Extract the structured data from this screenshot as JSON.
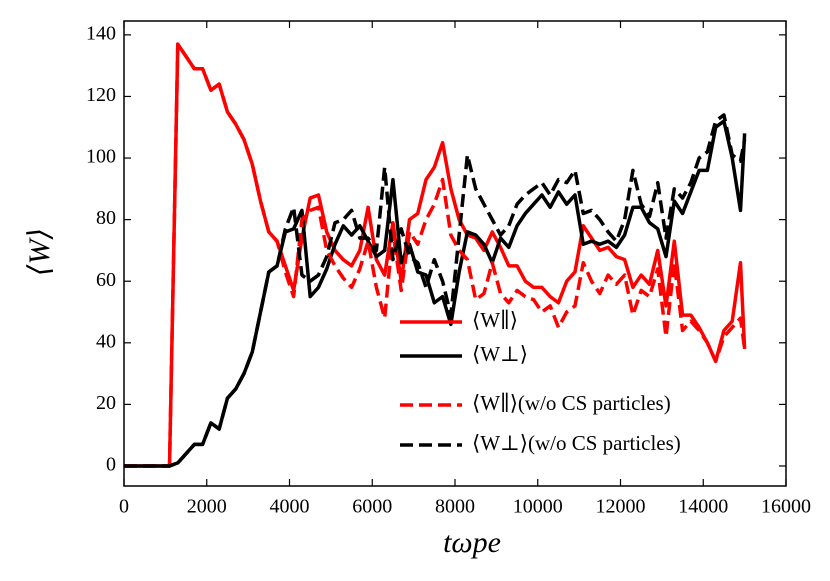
{
  "chart_data": {
    "type": "line",
    "xlabel": "tωpe",
    "ylabel": "⟨W⟩",
    "x": [
      0,
      1000,
      1100,
      1300,
      1500,
      1700,
      1900,
      2100,
      2300,
      2500,
      2700,
      2900,
      3100,
      3300,
      3500,
      3700,
      3900,
      4100,
      4300,
      4500,
      4700,
      4900,
      5100,
      5300,
      5500,
      5700,
      5900,
      6100,
      6300,
      6500,
      6700,
      6900,
      7100,
      7300,
      7500,
      7700,
      7900,
      8100,
      8300,
      8500,
      8700,
      8900,
      9100,
      9300,
      9500,
      9700,
      9900,
      10100,
      10300,
      10500,
      10700,
      10900,
      11100,
      11300,
      11500,
      11700,
      11900,
      12100,
      12300,
      12500,
      12700,
      12900,
      13100,
      13300,
      13500,
      13700,
      13900,
      14100,
      14300,
      14500,
      14700,
      14900,
      15000
    ],
    "series": [
      {
        "name": "⟨W∥⟩",
        "color": "#ff0000",
        "dash": false,
        "values": [
          0,
          0,
          0,
          137,
          133,
          129,
          129,
          122,
          124,
          115,
          111,
          106,
          98,
          86,
          76,
          73,
          65,
          57,
          74,
          87,
          88,
          76,
          70,
          67,
          65,
          70,
          84,
          67,
          62,
          79,
          60,
          80,
          82,
          93,
          97,
          105,
          90,
          80,
          75,
          74,
          70,
          76,
          71,
          65,
          65,
          60,
          58,
          58,
          55,
          53,
          60,
          63,
          78,
          74,
          70,
          71,
          68,
          67,
          58,
          62,
          59,
          70,
          52,
          73,
          49,
          49,
          45,
          40,
          34,
          44,
          47,
          66,
          38
        ]
      },
      {
        "name": "⟨W⊥⟩",
        "color": "#000000",
        "dash": false,
        "values": [
          0,
          0,
          0,
          1,
          4,
          7,
          7,
          14,
          12,
          22,
          25,
          30,
          37,
          50,
          63,
          65,
          76,
          77,
          83,
          55,
          58,
          64,
          72,
          78,
          75,
          78,
          73,
          68,
          70,
          93,
          66,
          72,
          63,
          62,
          53,
          55,
          46,
          63,
          76,
          75,
          72,
          66,
          74,
          71,
          78,
          82,
          85,
          88,
          84,
          89,
          85,
          88,
          72,
          73,
          72,
          73,
          71,
          75,
          84,
          84,
          79,
          77,
          68,
          86,
          82,
          89,
          96,
          96,
          110,
          112,
          100,
          83,
          108
        ]
      },
      {
        "name": "⟨W∥⟩(w/o CS particles)",
        "color": "#ff0000",
        "dash": true,
        "values": [
          0,
          0,
          0,
          137,
          133,
          129,
          129,
          122,
          124,
          115,
          111,
          106,
          98,
          86,
          76,
          73,
          63,
          55,
          80,
          83,
          84,
          70,
          65,
          61,
          58,
          64,
          73,
          58,
          48,
          76,
          57,
          76,
          72,
          80,
          85,
          93,
          75,
          70,
          67,
          54,
          56,
          66,
          56,
          53,
          57,
          55,
          54,
          50,
          52,
          45,
          50,
          52,
          66,
          60,
          56,
          62,
          59,
          62,
          49,
          57,
          55,
          64,
          42,
          66,
          44,
          47,
          44,
          40,
          34,
          42,
          45,
          48,
          38
        ]
      },
      {
        "name": "⟨W⊥⟩(w/o CS particles)",
        "color": "#000000",
        "dash": true,
        "values": [
          0,
          0,
          0,
          1,
          4,
          7,
          7,
          14,
          12,
          22,
          25,
          30,
          37,
          50,
          63,
          65,
          77,
          84,
          62,
          60,
          62,
          68,
          79,
          80,
          83,
          74,
          74,
          70,
          97,
          67,
          77,
          68,
          66,
          58,
          67,
          60,
          49,
          75,
          101,
          90,
          85,
          80,
          75,
          78,
          85,
          88,
          90,
          92,
          88,
          93,
          92,
          96,
          82,
          83,
          80,
          76,
          73,
          80,
          96,
          85,
          81,
          92,
          74,
          90,
          87,
          92,
          100,
          102,
          112,
          114,
          101,
          99,
          106
        ]
      }
    ],
    "xlim": [
      0,
      16000
    ],
    "xticks": [
      0,
      2000,
      4000,
      6000,
      8000,
      10000,
      12000,
      14000,
      16000
    ],
    "ylim": [
      -6.5,
      144.5
    ],
    "yticks": [
      0,
      20,
      40,
      60,
      80,
      100,
      120,
      140
    ],
    "legend": "lower center",
    "grid": false
  }
}
